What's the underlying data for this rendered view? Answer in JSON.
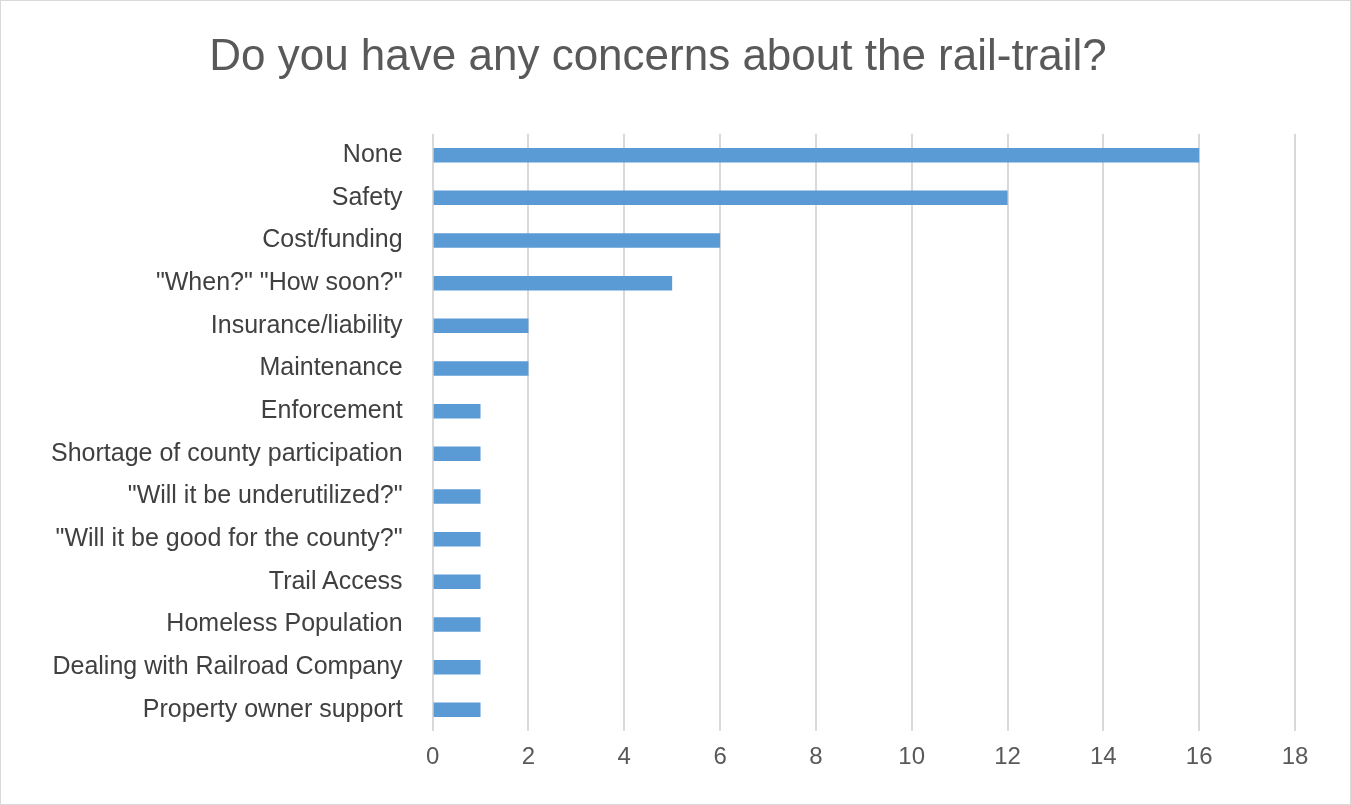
{
  "chart_data": {
    "type": "bar",
    "orientation": "horizontal",
    "title": "Do you have any concerns about the rail-trail?",
    "categories": [
      "None",
      "Safety",
      "Cost/funding",
      "\"When?\" \"How soon?\"",
      "Insurance/liability",
      "Maintenance",
      "Enforcement",
      "Shortage of county participation",
      "\"Will it be underutilized?\"",
      "\"Will it be good for the county?\"",
      "Trail Access",
      "Homeless Population",
      "Dealing with Railroad Company",
      "Property owner support"
    ],
    "values": [
      16,
      12,
      6,
      5,
      2,
      2,
      1,
      1,
      1,
      1,
      1,
      1,
      1,
      1
    ],
    "color": "#5b9bd5",
    "xlim": [
      0,
      18
    ],
    "xticks": [
      0,
      2,
      4,
      6,
      8,
      10,
      12,
      14,
      16,
      18
    ],
    "grid": "x",
    "legend": false
  }
}
